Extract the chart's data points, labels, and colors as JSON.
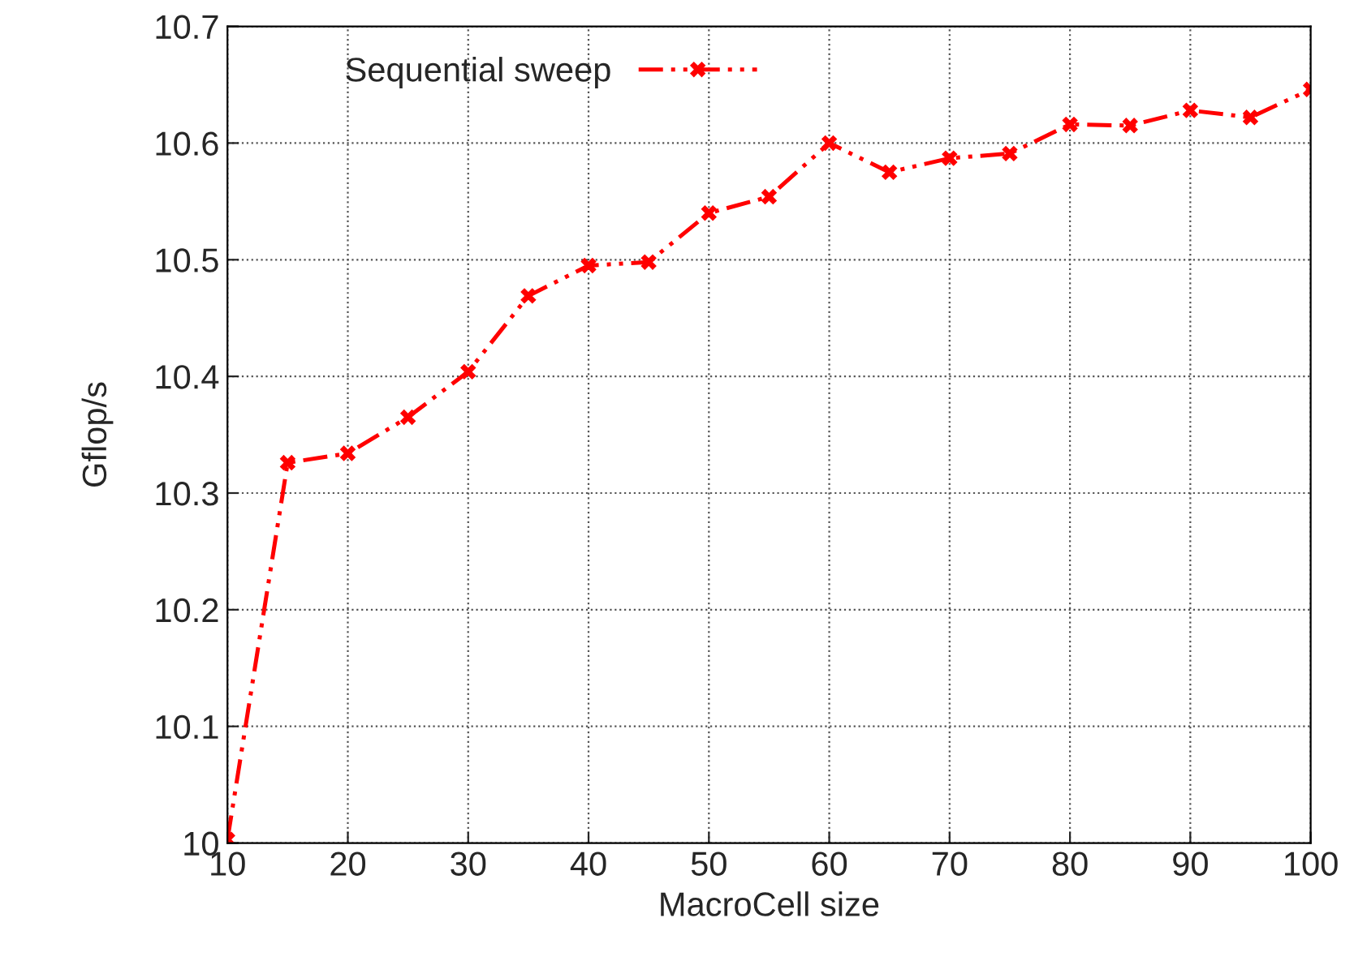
{
  "chart_data": {
    "type": "line",
    "xlabel": "MacroCell size",
    "ylabel": "Gflop/s",
    "x": [
      10,
      15,
      20,
      25,
      30,
      35,
      40,
      45,
      50,
      55,
      60,
      65,
      70,
      75,
      80,
      85,
      90,
      95,
      100
    ],
    "series": [
      {
        "name": "Sequential sweep",
        "color": "#ff0000",
        "values": [
          10.003,
          10.326,
          10.334,
          10.365,
          10.404,
          10.469,
          10.495,
          10.498,
          10.54,
          10.554,
          10.6,
          10.575,
          10.587,
          10.591,
          10.616,
          10.615,
          10.628,
          10.622,
          10.646
        ]
      }
    ],
    "xlim": [
      10,
      100
    ],
    "xticks": [
      10,
      20,
      30,
      40,
      50,
      60,
      70,
      80,
      90,
      100
    ],
    "ylim": [
      10,
      10.7
    ],
    "yticks": [
      {
        "value": 10,
        "label": "10"
      },
      10.1,
      10.2,
      10.3,
      10.4,
      10.5,
      10.6,
      10.7
    ],
    "grid": true,
    "legend": "top left",
    "marker": "cross",
    "line_style": "dashed"
  }
}
